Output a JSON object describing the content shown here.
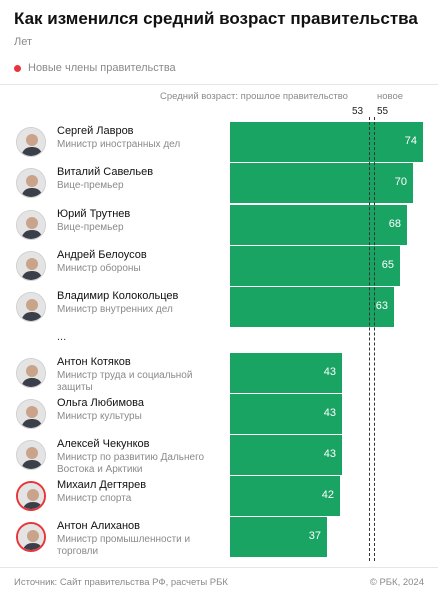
{
  "title": "Как изменился средний возраст правительства",
  "subtitle": "Лет",
  "legend": {
    "new_members_label": "Новые члены правительства",
    "new_color": "#e8353a"
  },
  "header": {
    "avg_label": "Средний возраст: прошлое правительство",
    "new_label": "новое",
    "prev_avg": "53",
    "new_avg": "55"
  },
  "ellipsis": "...",
  "footer": {
    "source": "Источник: Сайт правительства РФ, расчеты РБК",
    "copyright": "© РБК, 2024"
  },
  "bar_color": "#1aa464",
  "chart_data": {
    "type": "bar",
    "orientation": "horizontal",
    "unit": "Лет",
    "reference_lines": [
      {
        "label": "прошлое правительство",
        "value": 53
      },
      {
        "label": "новое",
        "value": 55
      }
    ],
    "people": [
      {
        "name": "Сергей Лавров",
        "role": "Министр иностранных дел",
        "age": 74,
        "new": false
      },
      {
        "name": "Виталий Савельев",
        "role": "Вице-премьер",
        "age": 70,
        "new": false
      },
      {
        "name": "Юрий Трутнев",
        "role": "Вице-премьер",
        "age": 68,
        "new": false
      },
      {
        "name": "Андрей Белоусов",
        "role": "Министр обороны",
        "age": 65,
        "new": false
      },
      {
        "name": "Владимир Колокольцев",
        "role": "Министр внутренних дел",
        "age": 63,
        "new": false
      },
      {
        "name": "Антон Котяков",
        "role": "Министр труда и социальной защиты",
        "age": 43,
        "new": false
      },
      {
        "name": "Ольга Любимова",
        "role": "Министр культуры",
        "age": 43,
        "new": false
      },
      {
        "name": "Алексей Чекунков",
        "role": "Министр по развитию Дальнего Востока и Арктики",
        "age": 43,
        "new": false
      },
      {
        "name": "Михаил Дегтярев",
        "role": "Министр спорта",
        "age": 42,
        "new": true
      },
      {
        "name": "Антон Алиханов",
        "role": "Министр промышленности и торговли",
        "age": 37,
        "new": true
      }
    ]
  }
}
